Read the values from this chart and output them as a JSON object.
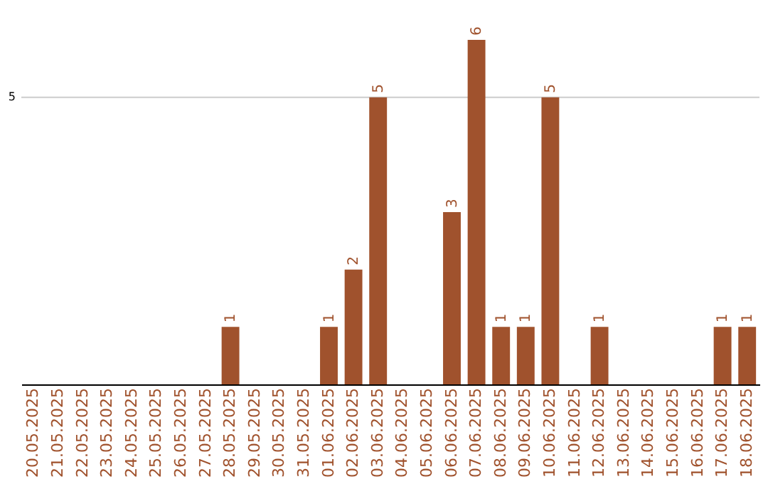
{
  "chart_data": {
    "type": "bar",
    "categories": [
      "20.05.2025",
      "21.05.2025",
      "22.05.2025",
      "23.05.2025",
      "24.05.2025",
      "25.05.2025",
      "26.05.2025",
      "27.05.2025",
      "28.05.2025",
      "29.05.2025",
      "30.05.2025",
      "31.05.2025",
      "01.06.2025",
      "02.06.2025",
      "03.06.2025",
      "04.06.2025",
      "05.06.2025",
      "06.06.2025",
      "07.06.2025",
      "08.06.2025",
      "09.06.2025",
      "10.06.2025",
      "11.06.2025",
      "12.06.2025",
      "13.06.2025",
      "14.06.2025",
      "15.06.2025",
      "16.06.2025",
      "17.06.2025",
      "18.06.2025"
    ],
    "values": [
      0,
      0,
      0,
      0,
      0,
      0,
      0,
      0,
      1,
      0,
      0,
      0,
      1,
      2,
      5,
      0,
      0,
      3,
      6,
      1,
      1,
      5,
      0,
      1,
      0,
      0,
      0,
      0,
      1,
      1
    ],
    "value_labels": [
      null,
      null,
      null,
      null,
      null,
      null,
      null,
      null,
      "1",
      null,
      null,
      null,
      "1",
      "2",
      "5",
      null,
      null,
      "3",
      "6",
      "1",
      "1",
      "5",
      null,
      "1",
      null,
      null,
      null,
      null,
      "1",
      "1"
    ],
    "color": "#a0522d",
    "ref_lines": [
      {
        "axis": "y",
        "value": 5,
        "label": "5",
        "color": "#cccccc"
      }
    ]
  }
}
